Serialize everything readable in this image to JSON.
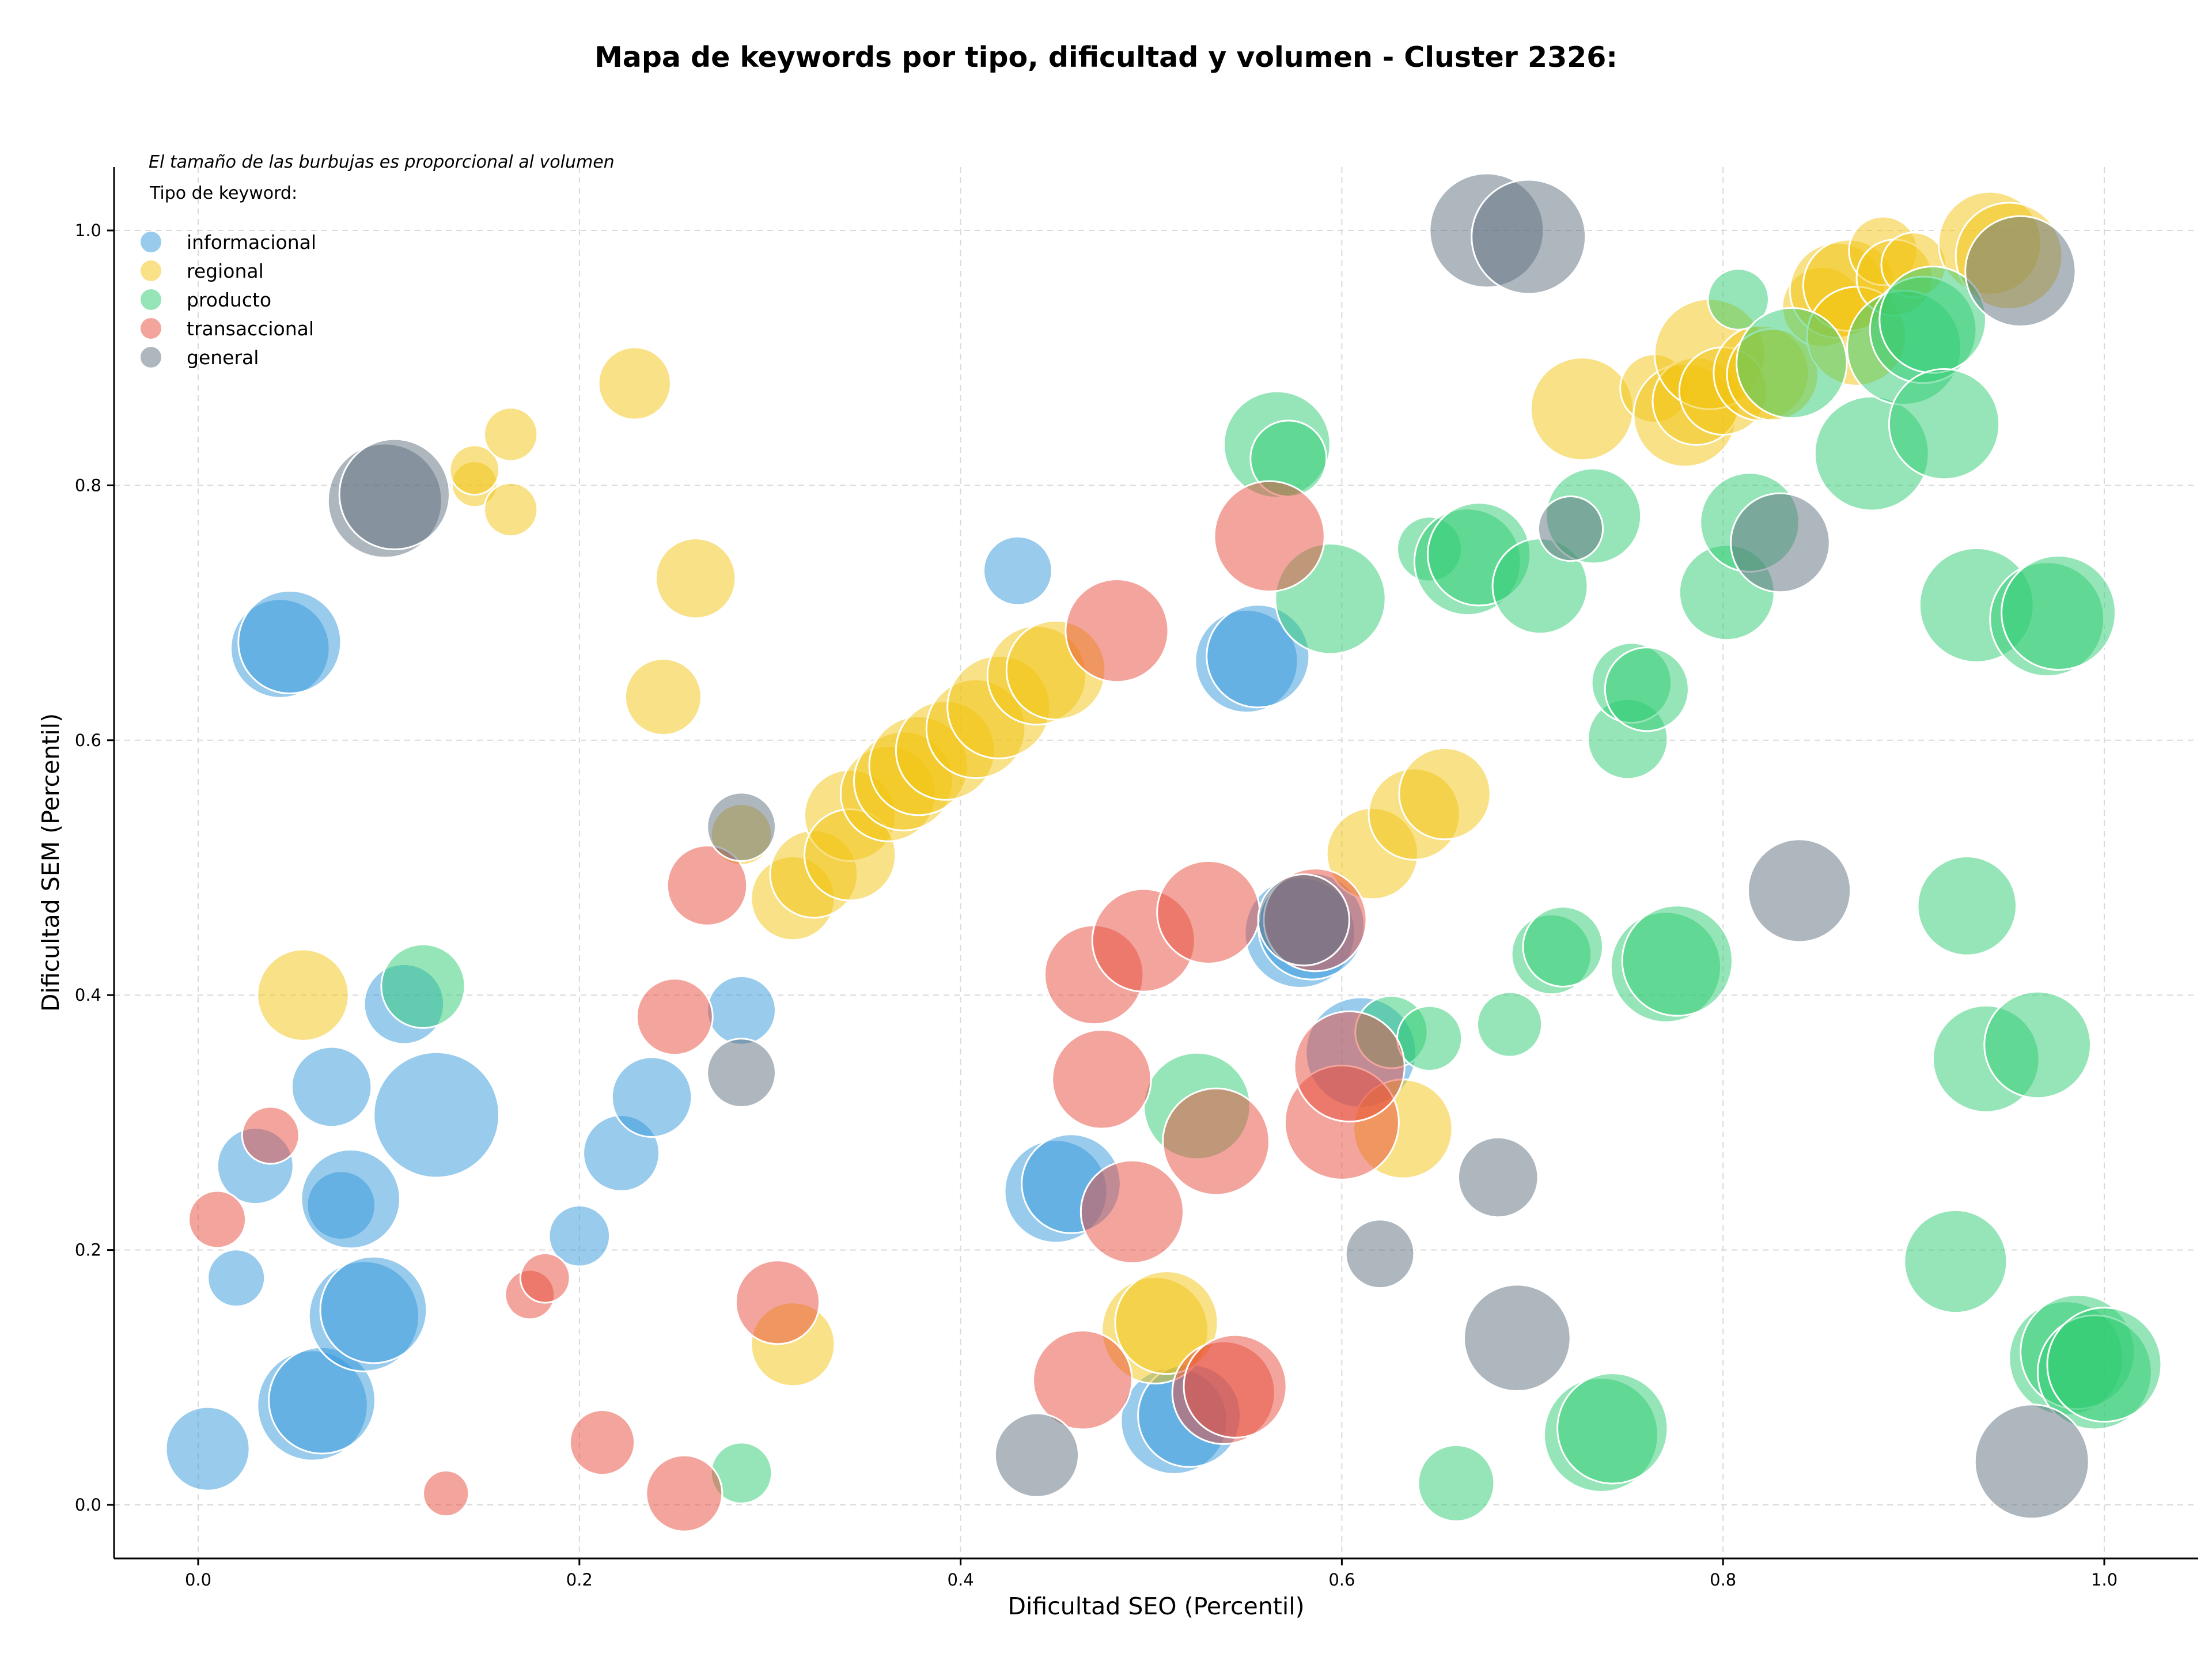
{
  "chart_data": {
    "type": "scatter",
    "title": "Mapa de keywords por tipo, dificultad y volumen - Cluster 2326:",
    "xlabel": "Dificultad SEO (Percentil)",
    "ylabel": "Dificultad SEM (Percentil)",
    "xlim": [
      -0.045,
      1.05
    ],
    "ylim": [
      -0.04,
      1.05
    ],
    "xticks": [
      "0.0",
      "0.2",
      "0.4",
      "0.6",
      "0.8",
      "1.0"
    ],
    "yticks": [
      "0.0",
      "0.2",
      "0.4",
      "0.6",
      "0.8",
      "1.0"
    ],
    "grid": true,
    "annotation": "El tamaño de las burbujas es proporcional al volumen",
    "legend": {
      "title": "Tipo de keyword:",
      "placement": "top-left"
    },
    "series": [
      {
        "name": "informacional",
        "color": "#3498db",
        "points": [
          [
            0.005,
            0.044,
            22
          ],
          [
            0.043,
            0.672,
            26
          ],
          [
            0.048,
            0.677,
            27
          ],
          [
            0.02,
            0.178,
            15
          ],
          [
            0.03,
            0.266,
            20
          ],
          [
            0.075,
            0.235,
            18
          ],
          [
            0.08,
            0.24,
            26
          ],
          [
            0.07,
            0.328,
            21
          ],
          [
            0.06,
            0.078,
            29
          ],
          [
            0.065,
            0.082,
            28
          ],
          [
            0.087,
            0.148,
            29
          ],
          [
            0.092,
            0.153,
            28
          ],
          [
            0.108,
            0.393,
            21
          ],
          [
            0.125,
            0.306,
            33
          ],
          [
            0.2,
            0.211,
            16
          ],
          [
            0.222,
            0.276,
            20
          ],
          [
            0.238,
            0.32,
            21
          ],
          [
            0.285,
            0.388,
            18
          ],
          [
            0.43,
            0.733,
            18
          ],
          [
            0.45,
            0.246,
            27
          ],
          [
            0.458,
            0.252,
            26
          ],
          [
            0.512,
            0.066,
            28
          ],
          [
            0.52,
            0.07,
            27
          ],
          [
            0.55,
            0.662,
            27
          ],
          [
            0.556,
            0.666,
            27
          ],
          [
            0.578,
            0.449,
            29
          ],
          [
            0.584,
            0.454,
            28
          ],
          [
            0.61,
            0.355,
            29
          ]
        ]
      },
      {
        "name": "regional",
        "color": "#f1c40f",
        "points": [
          [
            0.055,
            0.4,
            24
          ],
          [
            0.145,
            0.801,
            12
          ],
          [
            0.145,
            0.812,
            13
          ],
          [
            0.164,
            0.84,
            14
          ],
          [
            0.164,
            0.781,
            14
          ],
          [
            0.229,
            0.88,
            19
          ],
          [
            0.244,
            0.634,
            20
          ],
          [
            0.261,
            0.727,
            21
          ],
          [
            0.285,
            0.526,
            16
          ],
          [
            0.312,
            0.476,
            22
          ],
          [
            0.312,
            0.126,
            22
          ],
          [
            0.323,
            0.495,
            23
          ],
          [
            0.342,
            0.541,
            24
          ],
          [
            0.342,
            0.51,
            24
          ],
          [
            0.362,
            0.558,
            25
          ],
          [
            0.37,
            0.568,
            26
          ],
          [
            0.378,
            0.58,
            26
          ],
          [
            0.392,
            0.592,
            26
          ],
          [
            0.408,
            0.609,
            26
          ],
          [
            0.42,
            0.626,
            27
          ],
          [
            0.44,
            0.651,
            26
          ],
          [
            0.45,
            0.655,
            26
          ],
          [
            0.502,
            0.137,
            28
          ],
          [
            0.508,
            0.143,
            27
          ],
          [
            0.616,
            0.511,
            24
          ],
          [
            0.632,
            0.295,
            26
          ],
          [
            0.638,
            0.542,
            24
          ],
          [
            0.654,
            0.558,
            24
          ],
          [
            0.726,
            0.86,
            27
          ],
          [
            0.764,
            0.876,
            18
          ],
          [
            0.78,
            0.855,
            27
          ],
          [
            0.786,
            0.866,
            23
          ],
          [
            0.793,
            0.903,
            29
          ],
          [
            0.8,
            0.874,
            23
          ],
          [
            0.82,
            0.888,
            25
          ],
          [
            0.826,
            0.887,
            24
          ],
          [
            0.852,
            0.94,
            21
          ],
          [
            0.86,
            0.953,
            25
          ],
          [
            0.866,
            0.957,
            24
          ],
          [
            0.87,
            0.917,
            26
          ],
          [
            0.884,
            0.984,
            18
          ],
          [
            0.89,
            0.963,
            20
          ],
          [
            0.9,
            0.973,
            17
          ],
          [
            0.94,
            0.99,
            27
          ],
          [
            0.95,
            0.98,
            28
          ]
        ]
      },
      {
        "name": "producto",
        "color": "#2ecc71",
        "points": [
          [
            0.118,
            0.407,
            22
          ],
          [
            0.285,
            0.025,
            16
          ],
          [
            0.524,
            0.313,
            28
          ],
          [
            0.566,
            0.832,
            28
          ],
          [
            0.572,
            0.821,
            20
          ],
          [
            0.594,
            0.711,
            29
          ],
          [
            0.626,
            0.371,
            19
          ],
          [
            0.646,
            0.366,
            17
          ],
          [
            0.646,
            0.75,
            17
          ],
          [
            0.66,
            0.017,
            20
          ],
          [
            0.666,
            0.74,
            28
          ],
          [
            0.672,
            0.746,
            27
          ],
          [
            0.688,
            0.377,
            17
          ],
          [
            0.704,
            0.721,
            25
          ],
          [
            0.71,
            0.432,
            21
          ],
          [
            0.716,
            0.438,
            21
          ],
          [
            0.732,
            0.776,
            25
          ],
          [
            0.736,
            0.055,
            30
          ],
          [
            0.742,
            0.06,
            29
          ],
          [
            0.75,
            0.601,
            21
          ],
          [
            0.752,
            0.645,
            21
          ],
          [
            0.76,
            0.64,
            22
          ],
          [
            0.77,
            0.422,
            29
          ],
          [
            0.776,
            0.427,
            29
          ],
          [
            0.802,
            0.716,
            25
          ],
          [
            0.808,
            0.946,
            16
          ],
          [
            0.814,
            0.771,
            26
          ],
          [
            0.836,
            0.896,
            29
          ],
          [
            0.878,
            0.825,
            30
          ],
          [
            0.895,
            0.908,
            30
          ],
          [
            0.905,
            0.922,
            28
          ],
          [
            0.91,
            0.93,
            28
          ],
          [
            0.916,
            0.848,
            29
          ],
          [
            0.922,
            0.191,
            27
          ],
          [
            0.928,
            0.47,
            26
          ],
          [
            0.933,
            0.706,
            30
          ],
          [
            0.938,
            0.35,
            28
          ],
          [
            0.965,
            0.361,
            28
          ],
          [
            0.97,
            0.695,
            30
          ],
          [
            0.976,
            0.7,
            30
          ],
          [
            0.98,
            0.115,
            30
          ],
          [
            0.986,
            0.12,
            30
          ],
          [
            0.995,
            0.104,
            30
          ],
          [
            1.0,
            0.11,
            30
          ]
        ]
      },
      {
        "name": "transaccional",
        "color": "#e74c3c",
        "points": [
          [
            0.01,
            0.224,
            15
          ],
          [
            0.038,
            0.29,
            15
          ],
          [
            0.13,
            0.009,
            12
          ],
          [
            0.174,
            0.165,
            13
          ],
          [
            0.182,
            0.178,
            13
          ],
          [
            0.212,
            0.049,
            17
          ],
          [
            0.25,
            0.383,
            20
          ],
          [
            0.255,
            0.009,
            20
          ],
          [
            0.267,
            0.486,
            21
          ],
          [
            0.304,
            0.159,
            22
          ],
          [
            0.464,
            0.098,
            26
          ],
          [
            0.47,
            0.416,
            26
          ],
          [
            0.474,
            0.334,
            26
          ],
          [
            0.482,
            0.686,
            27
          ],
          [
            0.49,
            0.23,
            27
          ],
          [
            0.496,
            0.443,
            27
          ],
          [
            0.53,
            0.465,
            27
          ],
          [
            0.534,
            0.285,
            28
          ],
          [
            0.538,
            0.088,
            27
          ],
          [
            0.544,
            0.093,
            27
          ],
          [
            0.562,
            0.76,
            29
          ],
          [
            0.586,
            0.459,
            27
          ],
          [
            0.6,
            0.3,
            30
          ],
          [
            0.604,
            0.344,
            29
          ]
        ]
      },
      {
        "name": "general",
        "color": "#5d6d7e",
        "points": [
          [
            0.098,
            0.788,
            30
          ],
          [
            0.103,
            0.793,
            29
          ],
          [
            0.285,
            0.339,
            18
          ],
          [
            0.285,
            0.532,
            18
          ],
          [
            0.44,
            0.039,
            22
          ],
          [
            0.58,
            0.459,
            24
          ],
          [
            0.62,
            0.197,
            18
          ],
          [
            0.676,
            1.0,
            30
          ],
          [
            0.682,
            0.257,
            21
          ],
          [
            0.692,
            0.131,
            28
          ],
          [
            0.698,
            0.995,
            30
          ],
          [
            0.72,
            0.766,
            17
          ],
          [
            0.83,
            0.755,
            26
          ],
          [
            0.84,
            0.482,
            27
          ],
          [
            0.956,
            0.968,
            29
          ],
          [
            0.962,
            0.034,
            30
          ]
        ]
      }
    ]
  }
}
